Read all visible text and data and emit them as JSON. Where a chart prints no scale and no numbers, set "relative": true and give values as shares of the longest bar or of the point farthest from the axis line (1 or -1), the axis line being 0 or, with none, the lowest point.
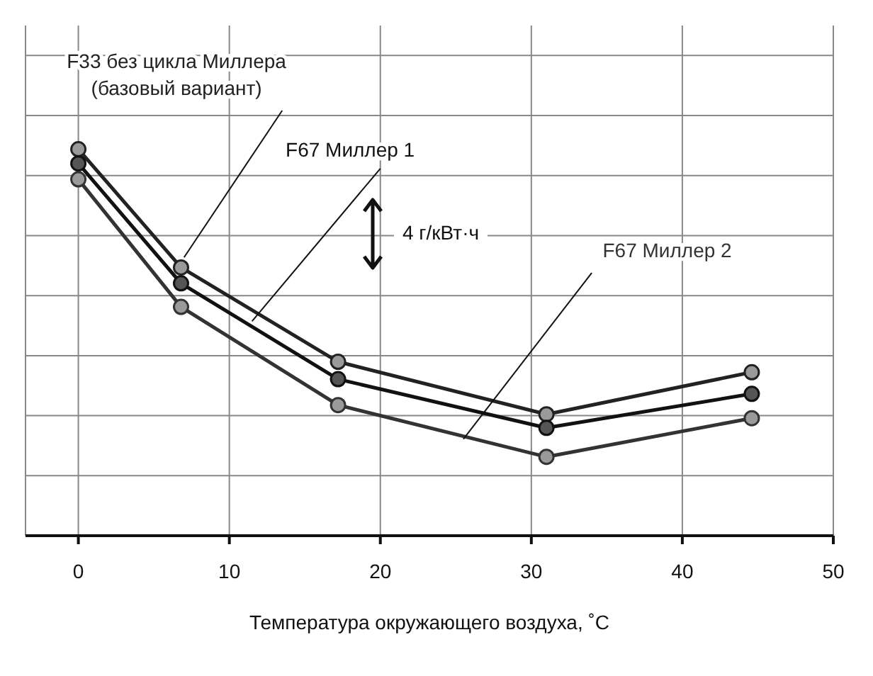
{
  "chart_data": {
    "type": "line",
    "relative": true,
    "xlabel": "Температура окружающего воздуха, ˚C",
    "x": [
      0,
      6.8,
      17.2,
      31,
      44.6
    ],
    "xlim": [
      -3.5,
      50
    ],
    "xticks": [
      0,
      10,
      20,
      30,
      40,
      50
    ],
    "grid": true,
    "marker": "circle",
    "line_style": "solid",
    "legend": false,
    "series": [
      {
        "name": "F33 без цикла Миллера (базовый вариант)",
        "color": "#222222",
        "values": [
          1,
          0.694,
          0.45,
          0.314,
          0.423
        ]
      },
      {
        "name": "F67 Миллер 1",
        "color": "#111111",
        "values": [
          0.963,
          0.653,
          0.405,
          0.279,
          0.367
        ]
      },
      {
        "name": "F67 Миллер 2",
        "color": "#333333",
        "values": [
          0.922,
          0.592,
          0.338,
          0.204,
          0.304
        ]
      }
    ],
    "annotations": [
      "4 г/кВт·ч"
    ]
  }
}
